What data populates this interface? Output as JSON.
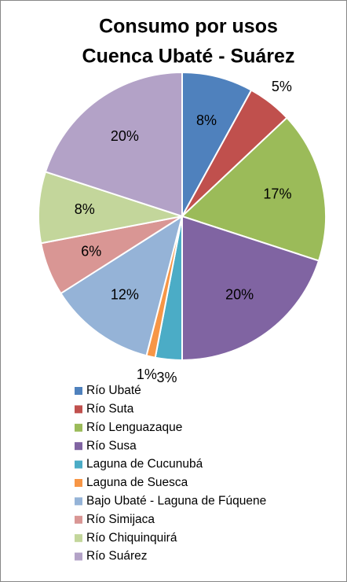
{
  "chart_data": {
    "type": "pie",
    "title": [
      "Consumo por usos",
      "Cuenca Ubaté - Suárez"
    ],
    "categories": [
      "Río Ubaté",
      "Río Suta",
      "Río Lenguazaque",
      "Río Susa",
      "Laguna de Cucunubá",
      "Laguna de Suesca",
      "Bajo Ubaté - Laguna de Fúquene",
      "Río Simijaca",
      "Río Chiquinquirá",
      "Río Suárez"
    ],
    "values": [
      8,
      5,
      17,
      20,
      3,
      1,
      12,
      6,
      8,
      20
    ],
    "value_labels": [
      "8%",
      "5%",
      "17%",
      "20%",
      "3%",
      "1%",
      "12%",
      "6%",
      "8%",
      "20%"
    ],
    "colors": [
      "#4F81BD",
      "#C0504D",
      "#9BBB59",
      "#8064A2",
      "#4BACC6",
      "#F79646",
      "#95B3D7",
      "#D99694",
      "#C3D69B",
      "#B3A2C7"
    ],
    "legend": "bottom"
  }
}
